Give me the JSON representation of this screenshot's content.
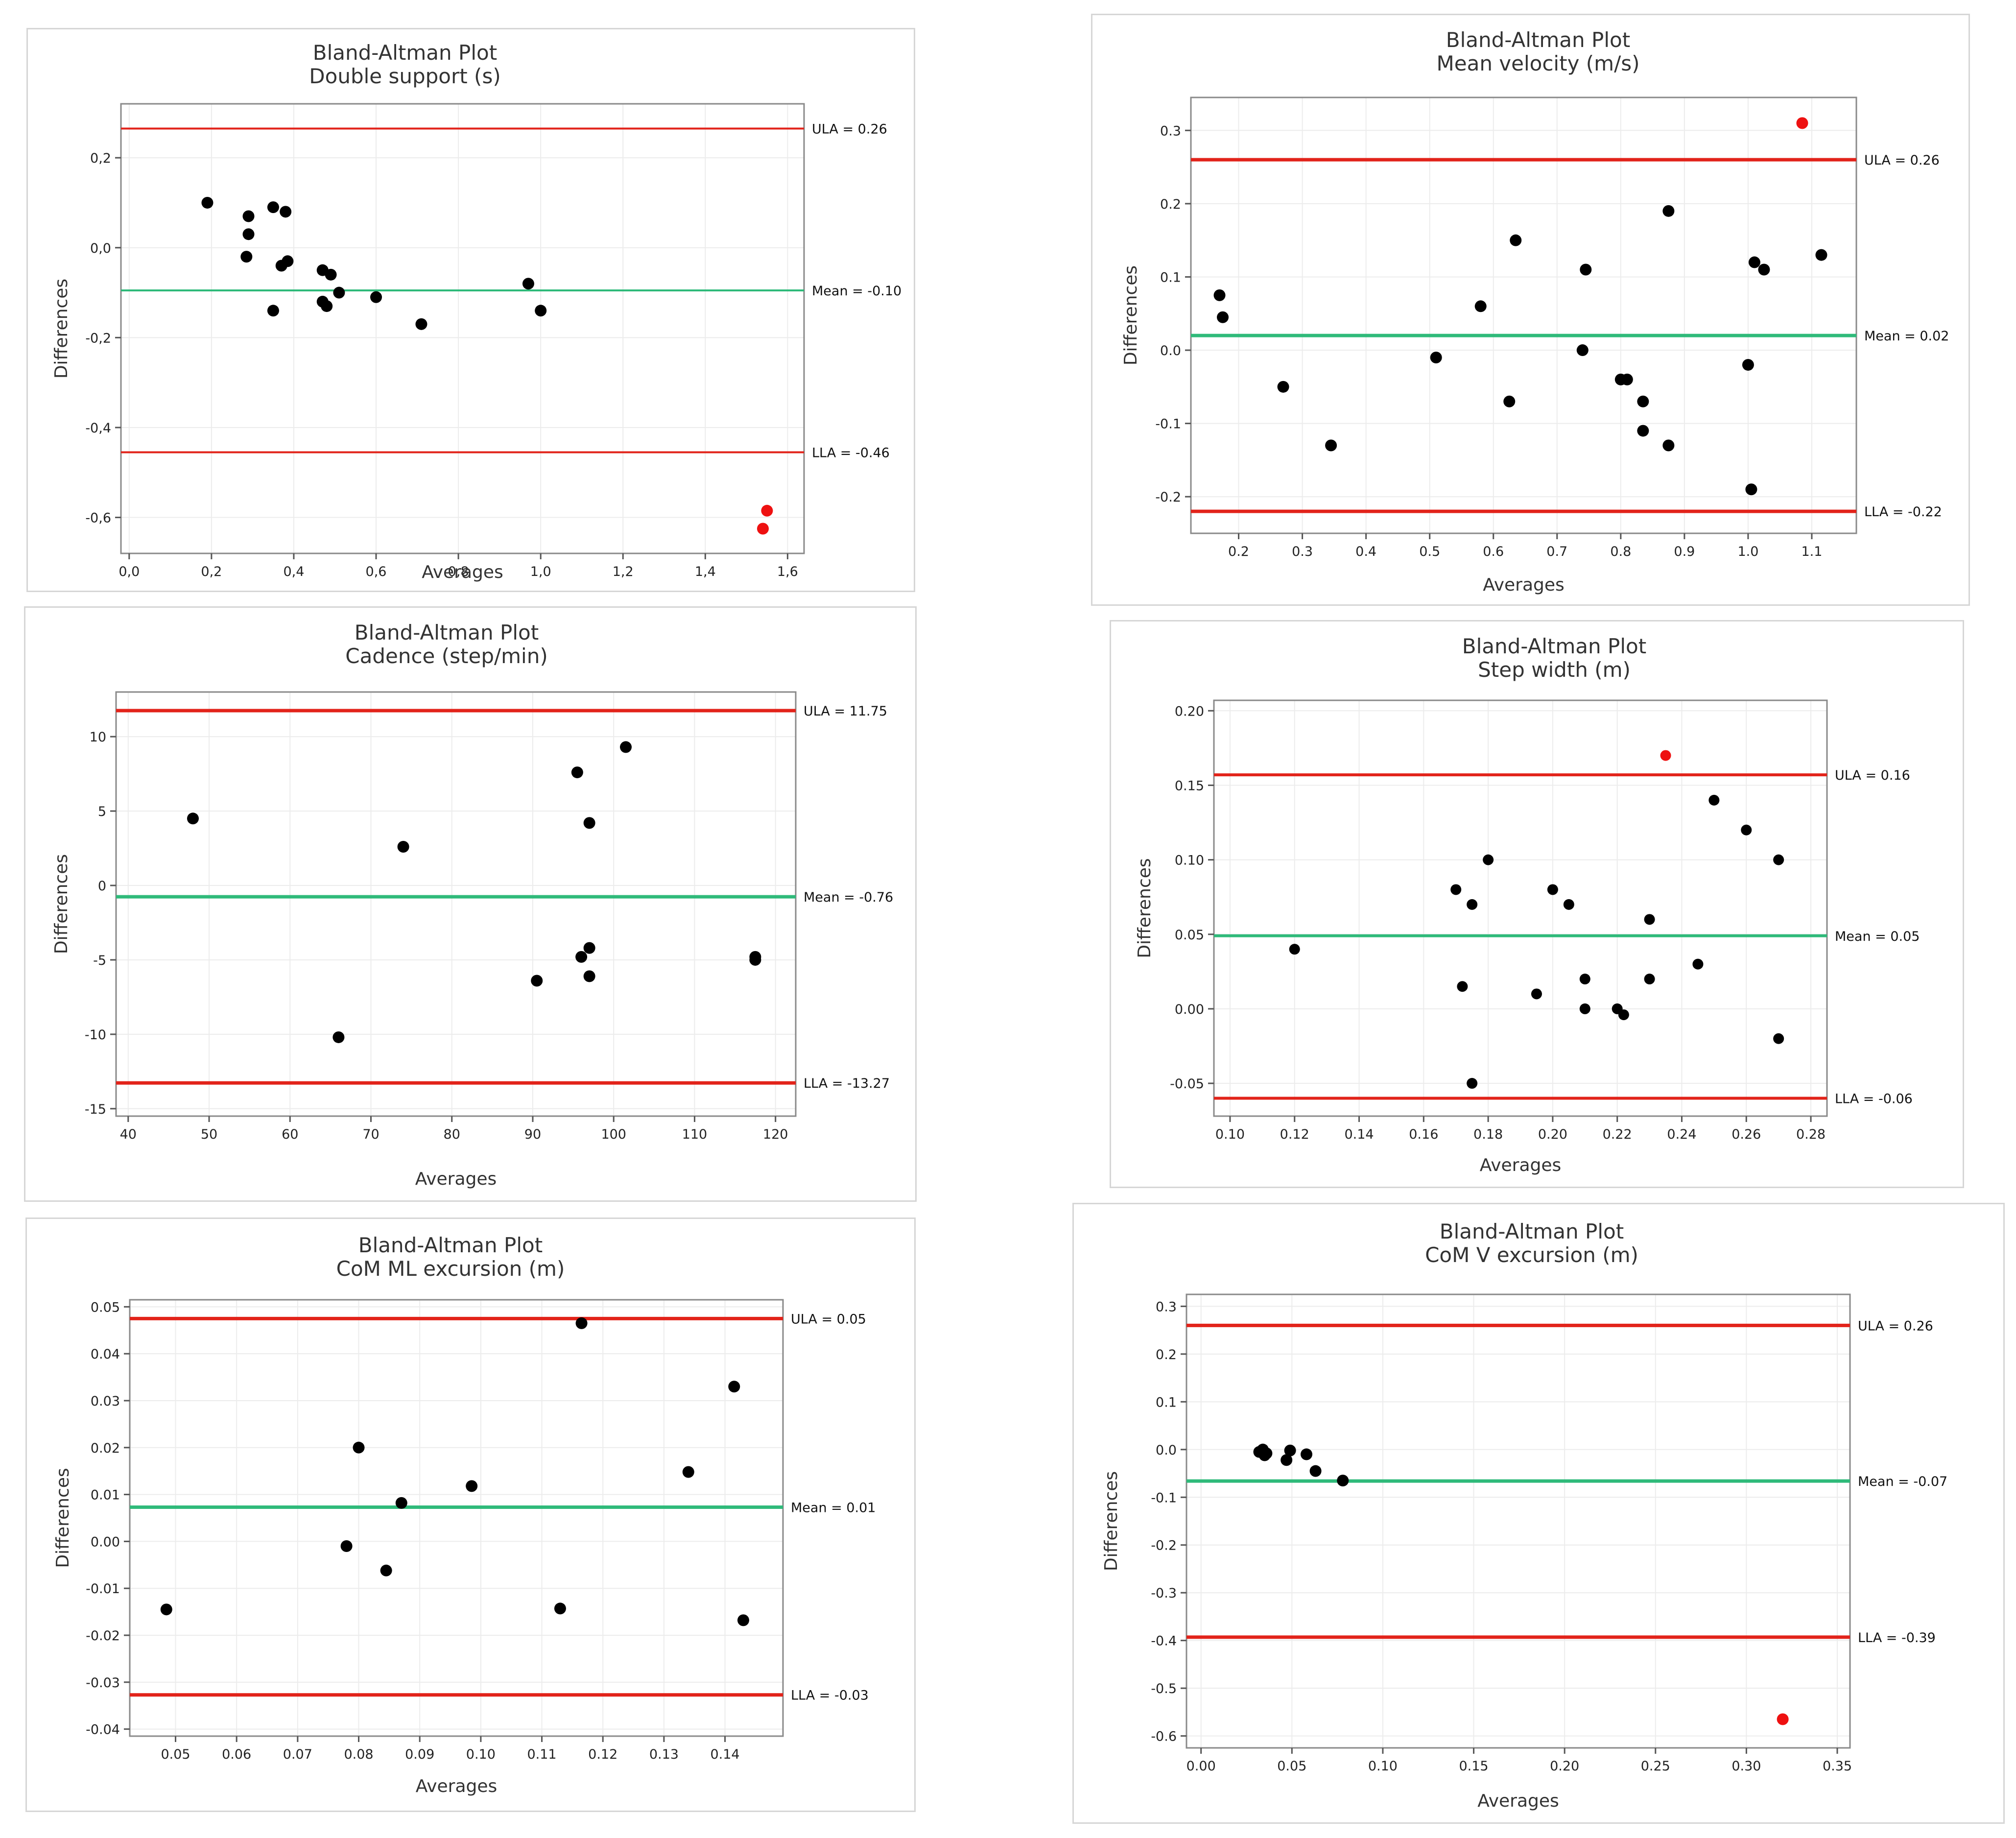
{
  "chart_data": [
    {
      "id": "double-support",
      "type": "scatter",
      "title": "Bland-Altman Plot",
      "subtitle": "Double support (s)",
      "xlabel": "Averages",
      "ylabel": "Differences",
      "xlim": [
        -0.02,
        1.64
      ],
      "ylim": [
        -0.68,
        0.32
      ],
      "xticks": [
        0.0,
        0.2,
        0.4,
        0.6,
        0.8,
        1.0,
        1.2,
        1.4,
        1.6
      ],
      "yticks": [
        -0.6,
        -0.4,
        -0.2,
        0.0,
        0.2
      ],
      "xtick_labels": [
        "0,0",
        "0,2",
        "0,4",
        "0,6",
        "0,8",
        "1,0",
        "1,2",
        "1,4",
        "1,6"
      ],
      "ytick_labels": [
        "-0,6",
        "-0,4",
        "-0,2",
        "0,0",
        "0,2"
      ],
      "ula": 0.265,
      "mean": -0.095,
      "lla": -0.455,
      "ula_label": "ULA = 0.26",
      "mean_label": "Mean = -0.10",
      "lla_label": "LLA = -0.46",
      "points": [
        [
          0.19,
          0.1
        ],
        [
          0.29,
          0.07
        ],
        [
          0.29,
          0.03
        ],
        [
          0.285,
          -0.02
        ],
        [
          0.35,
          0.09
        ],
        [
          0.38,
          0.08
        ],
        [
          0.37,
          -0.04
        ],
        [
          0.385,
          -0.03
        ],
        [
          0.35,
          -0.14
        ],
        [
          0.47,
          -0.05
        ],
        [
          0.49,
          -0.06
        ],
        [
          0.47,
          -0.12
        ],
        [
          0.48,
          -0.13
        ],
        [
          0.51,
          -0.1
        ],
        [
          0.6,
          -0.11
        ],
        [
          0.71,
          -0.17
        ],
        [
          0.97,
          -0.08
        ],
        [
          1.0,
          -0.14
        ]
      ],
      "outliers": [
        [
          1.55,
          -0.585
        ],
        [
          1.54,
          -0.625
        ]
      ]
    },
    {
      "id": "mean-velocity",
      "type": "scatter",
      "title": "Bland-Altman Plot",
      "subtitle": "Mean velocity (m/s)",
      "xlabel": "Averages",
      "ylabel": "Differences",
      "xlim": [
        0.125,
        1.17
      ],
      "ylim": [
        -0.25,
        0.345
      ],
      "xticks": [
        0.2,
        0.3,
        0.4,
        0.5,
        0.6,
        0.7,
        0.8,
        0.9,
        1.0,
        1.1
      ],
      "yticks": [
        -0.2,
        -0.1,
        0.0,
        0.1,
        0.2,
        0.3
      ],
      "xtick_labels": [
        "0.2",
        "0.3",
        "0.4",
        "0.5",
        "0.6",
        "0.7",
        "0.8",
        "0.9",
        "1.0",
        "1.1"
      ],
      "ytick_labels": [
        "-0.2",
        "-0.1",
        "0.0",
        "0.1",
        "0.2",
        "0.3"
      ],
      "ula": 0.26,
      "mean": 0.02,
      "lla": -0.22,
      "ula_label": "ULA = 0.26",
      "mean_label": "Mean = 0.02",
      "lla_label": "LLA = -0.22",
      "points": [
        [
          0.17,
          0.075
        ],
        [
          0.175,
          0.045
        ],
        [
          0.27,
          -0.05
        ],
        [
          0.345,
          -0.13
        ],
        [
          0.51,
          -0.01
        ],
        [
          0.58,
          0.06
        ],
        [
          0.625,
          -0.07
        ],
        [
          0.635,
          0.15
        ],
        [
          0.74,
          0.0
        ],
        [
          0.745,
          0.11
        ],
        [
          0.8,
          -0.04
        ],
        [
          0.81,
          -0.04
        ],
        [
          0.835,
          -0.07
        ],
        [
          0.835,
          -0.11
        ],
        [
          0.875,
          -0.13
        ],
        [
          0.875,
          0.19
        ],
        [
          1.0,
          -0.02
        ],
        [
          1.005,
          -0.19
        ],
        [
          1.01,
          0.12
        ],
        [
          1.025,
          0.11
        ],
        [
          1.115,
          0.13
        ]
      ],
      "outliers": [
        [
          1.085,
          0.31
        ]
      ]
    },
    {
      "id": "cadence",
      "type": "scatter",
      "title": "Bland-Altman Plot",
      "subtitle": "Cadence (step/min)",
      "xlabel": "Averages",
      "ylabel": "Differences",
      "xlim": [
        38.5,
        122.5
      ],
      "ylim": [
        -15.5,
        13.0
      ],
      "xticks": [
        40,
        50,
        60,
        70,
        80,
        90,
        100,
        110,
        120
      ],
      "yticks": [
        -15,
        -10,
        -5,
        0,
        5,
        10
      ],
      "xtick_labels": [
        "40",
        "50",
        "60",
        "70",
        "80",
        "90",
        "100",
        "110",
        "120"
      ],
      "ytick_labels": [
        "-15",
        "-10",
        "-5",
        "0",
        "5",
        "10"
      ],
      "ula": 11.75,
      "mean": -0.76,
      "lla": -13.27,
      "ula_label": "ULA = 11.75",
      "mean_label": "Mean = -0.76",
      "lla_label": "LLA = -13.27",
      "points": [
        [
          48,
          4.5
        ],
        [
          66,
          -10.2
        ],
        [
          74,
          2.6
        ],
        [
          90.5,
          -6.4
        ],
        [
          95.5,
          7.6
        ],
        [
          96,
          -4.8
        ],
        [
          97,
          -6.1
        ],
        [
          97,
          -4.2
        ],
        [
          97,
          4.2
        ],
        [
          101.5,
          9.3
        ],
        [
          117.5,
          -4.8
        ],
        [
          117.5,
          -5.0
        ]
      ],
      "outliers": []
    },
    {
      "id": "step-width",
      "type": "scatter",
      "title": "Bland-Altman Plot",
      "subtitle": "Step width (m)",
      "xlabel": "Averages",
      "ylabel": "Differences",
      "xlim": [
        0.095,
        0.285
      ],
      "ylim": [
        -0.072,
        0.207
      ],
      "xticks": [
        0.1,
        0.12,
        0.14,
        0.16,
        0.18,
        0.2,
        0.22,
        0.24,
        0.26,
        0.28
      ],
      "yticks": [
        -0.05,
        0.0,
        0.05,
        0.1,
        0.15,
        0.2
      ],
      "xtick_labels": [
        "0.10",
        "0.12",
        "0.14",
        "0.16",
        "0.18",
        "0.20",
        "0.22",
        "0.24",
        "0.26",
        "0.28"
      ],
      "ytick_labels": [
        "-0.05",
        "0.00",
        "0.05",
        "0.10",
        "0.15",
        "0.20"
      ],
      "ula": 0.157,
      "mean": 0.049,
      "lla": -0.06,
      "ula_label": "ULA = 0.16",
      "mean_label": "Mean = 0.05",
      "lla_label": "LLA = -0.06",
      "points": [
        [
          0.12,
          0.04
        ],
        [
          0.17,
          0.08
        ],
        [
          0.172,
          0.015
        ],
        [
          0.175,
          0.07
        ],
        [
          0.175,
          -0.05
        ],
        [
          0.18,
          0.1
        ],
        [
          0.195,
          0.01
        ],
        [
          0.2,
          0.08
        ],
        [
          0.205,
          0.07
        ],
        [
          0.21,
          0.02
        ],
        [
          0.21,
          0.0
        ],
        [
          0.22,
          0.0
        ],
        [
          0.222,
          -0.004
        ],
        [
          0.23,
          0.06
        ],
        [
          0.23,
          0.02
        ],
        [
          0.245,
          0.03
        ],
        [
          0.25,
          0.14
        ],
        [
          0.26,
          0.12
        ],
        [
          0.27,
          0.1
        ],
        [
          0.27,
          -0.02
        ]
      ],
      "outliers": [
        [
          0.235,
          0.17
        ]
      ]
    },
    {
      "id": "com-ml-excursion",
      "type": "scatter",
      "title": "Bland-Altman Plot",
      "subtitle": "CoM ML excursion (m)",
      "xlabel": "Averages",
      "ylabel": "Differences",
      "xlim": [
        0.0425,
        0.1495
      ],
      "ylim": [
        -0.0415,
        0.0515
      ],
      "xticks": [
        0.05,
        0.06,
        0.07,
        0.08,
        0.09,
        0.1,
        0.11,
        0.12,
        0.13,
        0.14
      ],
      "yticks": [
        -0.04,
        -0.03,
        -0.02,
        -0.01,
        0.0,
        0.01,
        0.02,
        0.03,
        0.04,
        0.05
      ],
      "xtick_labels": [
        "0.05",
        "0.06",
        "0.07",
        "0.08",
        "0.09",
        "0.10",
        "0.11",
        "0.12",
        "0.13",
        "0.14"
      ],
      "ytick_labels": [
        "-0.04",
        "-0.03",
        "-0.02",
        "-0.01",
        "0.00",
        "0.01",
        "0.02",
        "0.03",
        "0.04",
        "0.05"
      ],
      "ula": 0.0475,
      "mean": 0.0073,
      "lla": -0.0327,
      "ula_label": "ULA = 0.05",
      "mean_label": "Mean = 0.01",
      "lla_label": "LLA = -0.03",
      "points": [
        [
          0.0485,
          -0.0145
        ],
        [
          0.078,
          -0.001
        ],
        [
          0.08,
          0.02
        ],
        [
          0.0845,
          -0.0062
        ],
        [
          0.087,
          0.0082
        ],
        [
          0.0985,
          0.0118
        ],
        [
          0.113,
          -0.0143
        ],
        [
          0.1165,
          0.0465
        ],
        [
          0.134,
          0.0148
        ],
        [
          0.1415,
          0.033
        ],
        [
          0.143,
          -0.0168
        ]
      ],
      "outliers": []
    },
    {
      "id": "com-v-excursion",
      "type": "scatter",
      "title": "Bland-Altman Plot",
      "subtitle": "CoM V excursion (m)",
      "xlabel": "Averages",
      "ylabel": "Differences",
      "xlim": [
        -0.008,
        0.357
      ],
      "ylim": [
        -0.625,
        0.325
      ],
      "xticks": [
        0.0,
        0.05,
        0.1,
        0.15,
        0.2,
        0.25,
        0.3,
        0.35
      ],
      "yticks": [
        -0.6,
        -0.5,
        -0.4,
        -0.3,
        -0.2,
        -0.1,
        0.0,
        0.1,
        0.2,
        0.3
      ],
      "xtick_labels": [
        "0.00",
        "0.05",
        "0.10",
        "0.15",
        "0.20",
        "0.25",
        "0.30",
        "0.35"
      ],
      "ytick_labels": [
        "-0.6",
        "-0.5",
        "-0.4",
        "-0.3",
        "-0.2",
        "-0.1",
        "0.0",
        "0.1",
        "0.2",
        "0.3"
      ],
      "ula": 0.26,
      "mean": -0.066,
      "lla": -0.393,
      "ula_label": "ULA = 0.26",
      "mean_label": "Mean = -0.07",
      "lla_label": "LLA = -0.39",
      "points": [
        [
          0.032,
          -0.005
        ],
        [
          0.034,
          0.0
        ],
        [
          0.035,
          -0.012
        ],
        [
          0.036,
          -0.008
        ],
        [
          0.047,
          -0.022
        ],
        [
          0.049,
          -0.002
        ],
        [
          0.058,
          -0.01
        ],
        [
          0.063,
          -0.045
        ],
        [
          0.078,
          -0.065
        ]
      ],
      "outliers": [
        [
          0.32,
          -0.565
        ]
      ]
    }
  ]
}
